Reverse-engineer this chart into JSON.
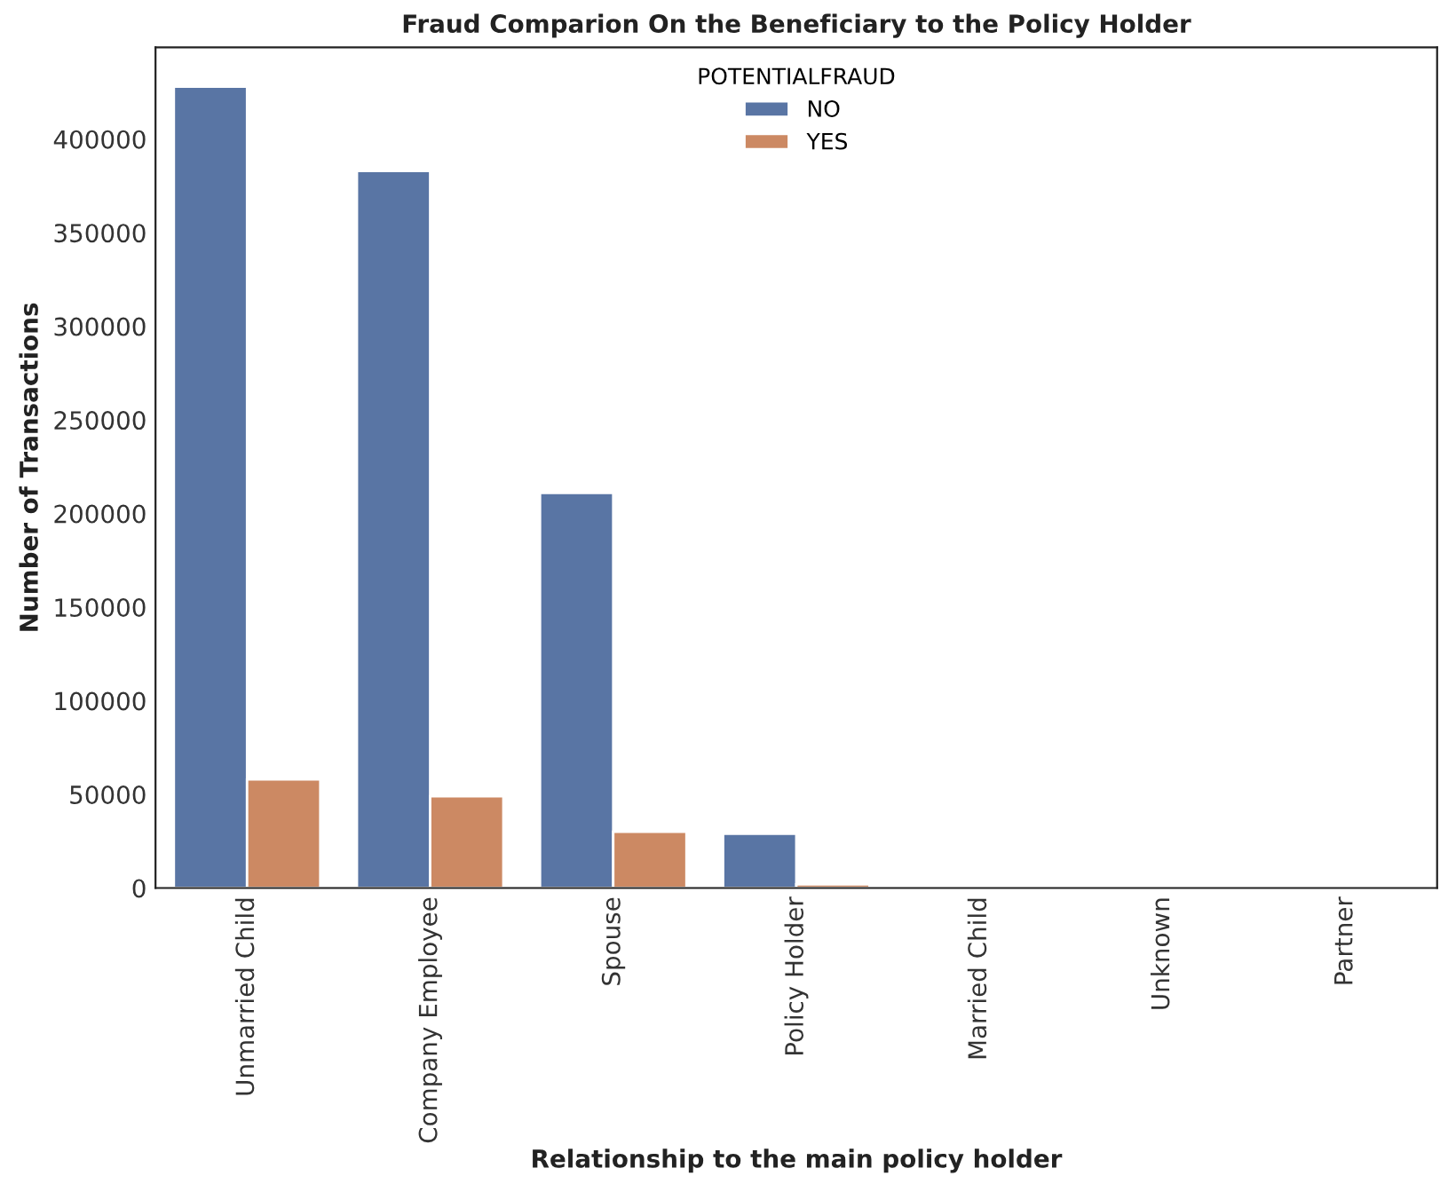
{
  "chart_data": {
    "type": "bar",
    "title": "Fraud Comparion On the Beneficiary to the Policy Holder",
    "xlabel": "Relationship to the main policy holder",
    "ylabel": "Number of Transactions",
    "legend_title": "POTENTIALFRAUD",
    "categories": [
      "Unmarried Child",
      "Company Employee",
      "Spouse",
      "Policy Holder",
      "Married Child",
      "Unknown",
      "Partner"
    ],
    "series": [
      {
        "name": "NO",
        "color": "#5975a4",
        "values": [
          428000,
          383000,
          211000,
          29000,
          0,
          0,
          0
        ]
      },
      {
        "name": "YES",
        "color": "#cc8963",
        "values": [
          58000,
          49000,
          30000,
          2000,
          0,
          0,
          0
        ]
      }
    ],
    "ylim": [
      0,
      449000
    ],
    "yticks": [
      0,
      50000,
      100000,
      150000,
      200000,
      250000,
      300000,
      350000,
      400000
    ],
    "grid": false,
    "legend": "top"
  }
}
